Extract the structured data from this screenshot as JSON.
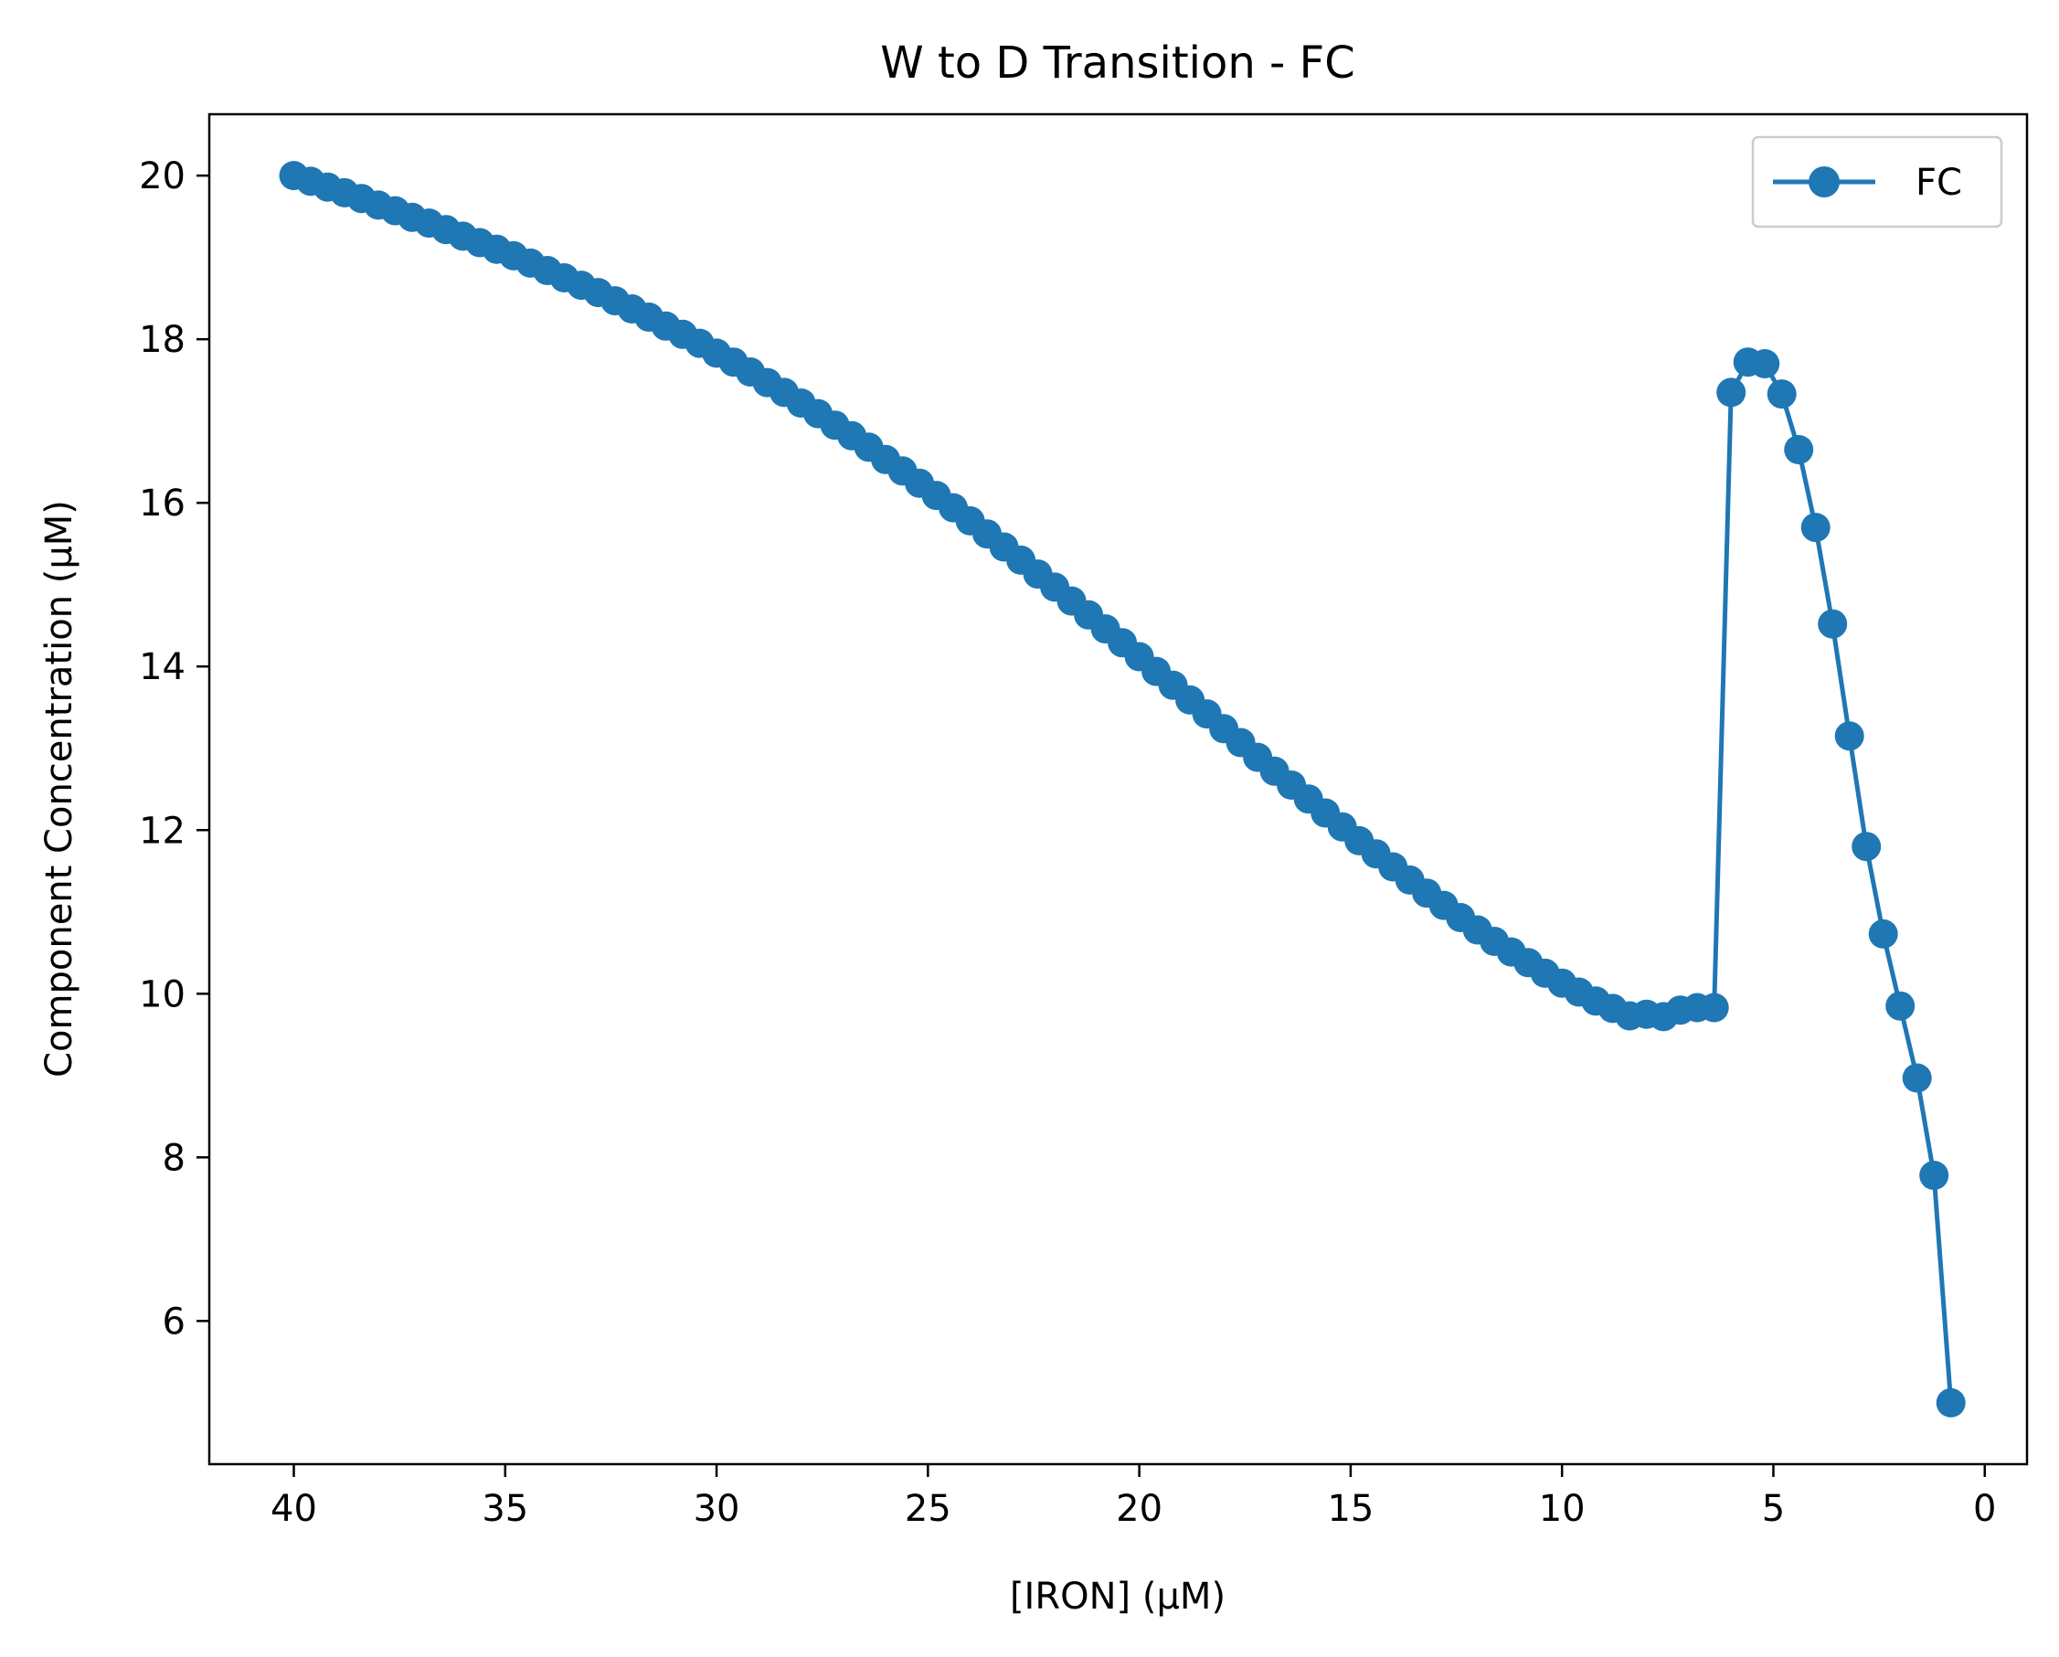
{
  "chart_data": {
    "type": "line",
    "title": "W to D Transition - FC",
    "xlabel": "[IRON] (μM)",
    "ylabel": "Component Concentration  (μM)",
    "x_inverted": true,
    "xlim": [
      42,
      -1
    ],
    "ylim": [
      4.25,
      20.75
    ],
    "xticks": [
      40,
      35,
      30,
      25,
      20,
      15,
      10,
      5,
      0
    ],
    "yticks": [
      6,
      8,
      10,
      12,
      14,
      16,
      18,
      20
    ],
    "grid": false,
    "legend_position": "top-right",
    "legend_entries": [
      "FC"
    ],
    "color": "#1f77b4",
    "series": [
      {
        "name": "FC",
        "marker": "circle",
        "points": [
          [
            40.0,
            20.0
          ],
          [
            39.6,
            19.93
          ],
          [
            39.2,
            19.86
          ],
          [
            38.8,
            19.79
          ],
          [
            38.4,
            19.72
          ],
          [
            38.0,
            19.64
          ],
          [
            37.6,
            19.57
          ],
          [
            37.2,
            19.49
          ],
          [
            36.8,
            19.42
          ],
          [
            36.4,
            19.34
          ],
          [
            36.0,
            19.26
          ],
          [
            35.6,
            19.18
          ],
          [
            35.2,
            19.1
          ],
          [
            34.8,
            19.02
          ],
          [
            34.4,
            18.93
          ],
          [
            34.0,
            18.84
          ],
          [
            33.6,
            18.75
          ],
          [
            33.2,
            18.66
          ],
          [
            32.8,
            18.57
          ],
          [
            32.4,
            18.47
          ],
          [
            32.0,
            18.37
          ],
          [
            31.6,
            18.27
          ],
          [
            31.2,
            18.16
          ],
          [
            30.8,
            18.06
          ],
          [
            30.4,
            17.95
          ],
          [
            30.0,
            17.83
          ],
          [
            29.6,
            17.72
          ],
          [
            29.2,
            17.6
          ],
          [
            28.8,
            17.47
          ],
          [
            28.4,
            17.35
          ],
          [
            28.0,
            17.22
          ],
          [
            27.6,
            17.09
          ],
          [
            27.2,
            16.95
          ],
          [
            26.8,
            16.82
          ],
          [
            26.4,
            16.68
          ],
          [
            26.0,
            16.53
          ],
          [
            25.6,
            16.39
          ],
          [
            25.2,
            16.24
          ],
          [
            24.8,
            16.09
          ],
          [
            24.4,
            15.94
          ],
          [
            24.0,
            15.78
          ],
          [
            23.6,
            15.62
          ],
          [
            23.2,
            15.46
          ],
          [
            22.8,
            15.3
          ],
          [
            22.4,
            15.13
          ],
          [
            22.0,
            14.97
          ],
          [
            21.6,
            14.8
          ],
          [
            21.2,
            14.63
          ],
          [
            20.8,
            14.46
          ],
          [
            20.4,
            14.29
          ],
          [
            20.0,
            14.12
          ],
          [
            19.6,
            13.94
          ],
          [
            19.2,
            13.77
          ],
          [
            18.8,
            13.59
          ],
          [
            18.4,
            13.42
          ],
          [
            18.0,
            13.24
          ],
          [
            17.6,
            13.07
          ],
          [
            17.2,
            12.89
          ],
          [
            16.8,
            12.72
          ],
          [
            16.4,
            12.55
          ],
          [
            16.0,
            12.38
          ],
          [
            15.6,
            12.21
          ],
          [
            15.2,
            12.04
          ],
          [
            14.8,
            11.87
          ],
          [
            14.4,
            11.71
          ],
          [
            14.0,
            11.55
          ],
          [
            13.6,
            11.39
          ],
          [
            13.2,
            11.23
          ],
          [
            12.8,
            11.08
          ],
          [
            12.4,
            10.93
          ],
          [
            12.0,
            10.78
          ],
          [
            11.6,
            10.64
          ],
          [
            11.2,
            10.51
          ],
          [
            10.8,
            10.38
          ],
          [
            10.4,
            10.25
          ],
          [
            10.0,
            10.13
          ],
          [
            9.6,
            10.02
          ],
          [
            9.2,
            9.91
          ],
          [
            8.8,
            9.82
          ],
          [
            8.4,
            9.73
          ],
          [
            8.0,
            9.75
          ],
          [
            7.6,
            9.72
          ],
          [
            7.2,
            9.8
          ],
          [
            6.8,
            9.83
          ],
          [
            6.4,
            9.83
          ],
          [
            6.0,
            17.35
          ],
          [
            5.6,
            17.72
          ],
          [
            5.2,
            17.7
          ],
          [
            4.8,
            17.33
          ],
          [
            4.4,
            16.65
          ],
          [
            4.0,
            15.7
          ],
          [
            3.6,
            14.52
          ],
          [
            3.2,
            13.15
          ],
          [
            2.8,
            11.8
          ],
          [
            2.4,
            10.73
          ],
          [
            2.0,
            9.85
          ],
          [
            1.6,
            8.97
          ],
          [
            1.2,
            7.78
          ],
          [
            0.8,
            5.0
          ]
        ]
      }
    ]
  }
}
